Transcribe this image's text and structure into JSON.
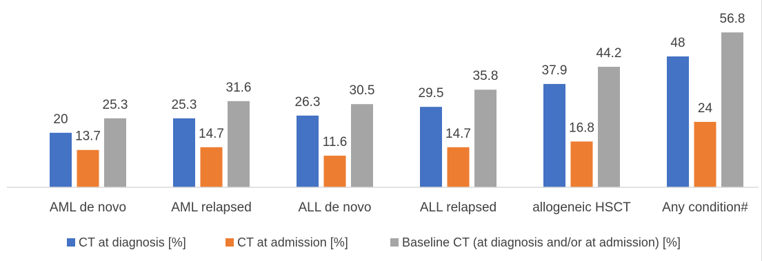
{
  "chart_data": {
    "type": "bar",
    "title": "",
    "xlabel": "",
    "ylabel": "",
    "ylim": [
      0,
      60
    ],
    "grid": false,
    "legend_position": "bottom",
    "categories": [
      "AML de novo",
      "AML relapsed",
      "ALL de novo",
      "ALL relapsed",
      "allogeneic HSCT",
      "Any condition#"
    ],
    "series": [
      {
        "name": "CT at diagnosis [%]",
        "color": "#4472c4",
        "values": [
          20,
          25.3,
          26.3,
          29.5,
          37.9,
          48
        ]
      },
      {
        "name": "CT at admission [%]",
        "color": "#ed7d31",
        "values": [
          13.7,
          14.7,
          11.6,
          14.7,
          16.8,
          24
        ]
      },
      {
        "name": "Baseline CT (at diagnosis and/or at admission) [%]",
        "color": "#a5a5a5",
        "values": [
          25.3,
          31.6,
          30.5,
          35.8,
          44.2,
          56.8
        ]
      }
    ]
  }
}
